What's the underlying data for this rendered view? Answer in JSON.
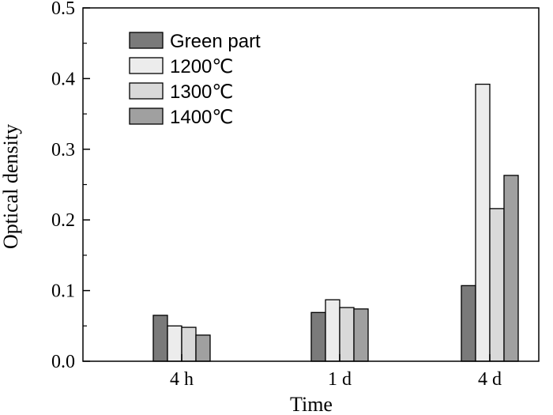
{
  "chart_data": {
    "type": "bar",
    "xlabel": "Time",
    "ylabel": "Optical density",
    "ylim": [
      0,
      0.5
    ],
    "yticks": [
      "0.0",
      "0.1",
      "0.2",
      "0.3",
      "0.4",
      "0.5"
    ],
    "categories": [
      "4 h",
      "1 d",
      "4 d"
    ],
    "legend_position": "top-left",
    "grid": false,
    "series": [
      {
        "name": "Green part",
        "color": "#7a7a7a",
        "values": [
          0.065,
          0.069,
          0.107
        ]
      },
      {
        "name": "1200℃",
        "color": "#ececec",
        "values": [
          0.05,
          0.087,
          0.392
        ]
      },
      {
        "name": "1300℃",
        "color": "#d9d9d9",
        "values": [
          0.048,
          0.076,
          0.216
        ]
      },
      {
        "name": "1400℃",
        "color": "#a0a0a0",
        "values": [
          0.037,
          0.074,
          0.263
        ]
      }
    ]
  }
}
